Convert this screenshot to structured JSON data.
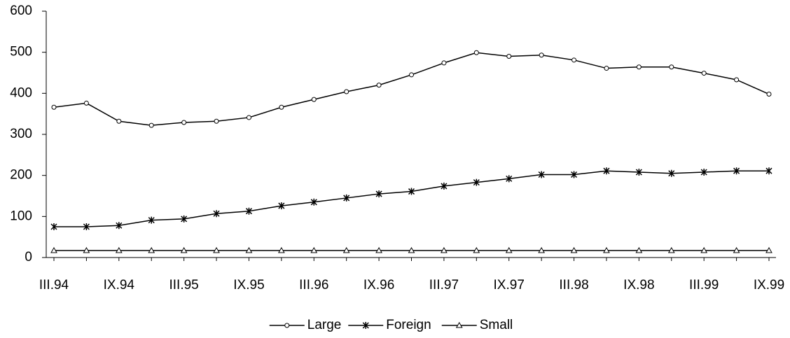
{
  "chart_data": {
    "type": "line",
    "categories": [
      "III.94",
      null,
      "IX.94",
      null,
      "III.95",
      null,
      "IX.95",
      null,
      "III.96",
      null,
      "IX.96",
      null,
      "III.97",
      null,
      "IX.97",
      null,
      "III.98",
      null,
      "IX.98",
      null,
      "III.99",
      null,
      "IX.99"
    ],
    "series": [
      {
        "name": "Large",
        "color": "#000000",
        "marker": "circle",
        "values": [
          366,
          376,
          332,
          322,
          329,
          332,
          341,
          366,
          385,
          404,
          420,
          445,
          474,
          499,
          490,
          493,
          481,
          461,
          464,
          464,
          449,
          433,
          398
        ]
      },
      {
        "name": "Foreign",
        "color": "#000000",
        "marker": "star",
        "values": [
          75,
          75,
          78,
          91,
          94,
          107,
          113,
          126,
          135,
          145,
          155,
          161,
          174,
          183,
          192,
          202,
          202,
          211,
          208,
          205,
          208,
          211,
          211
        ]
      },
      {
        "name": "Small",
        "color": "#000000",
        "marker": "triangle",
        "values": [
          17,
          17,
          17,
          17,
          17,
          17,
          17,
          17,
          17,
          17,
          17,
          17,
          17,
          17,
          17,
          17,
          17,
          17,
          17,
          17,
          17,
          17,
          17
        ]
      }
    ],
    "ylim": [
      0,
      600
    ],
    "yticks": [
      0,
      100,
      200,
      300,
      400,
      500,
      600
    ],
    "grid": false,
    "legend": "bottom"
  }
}
